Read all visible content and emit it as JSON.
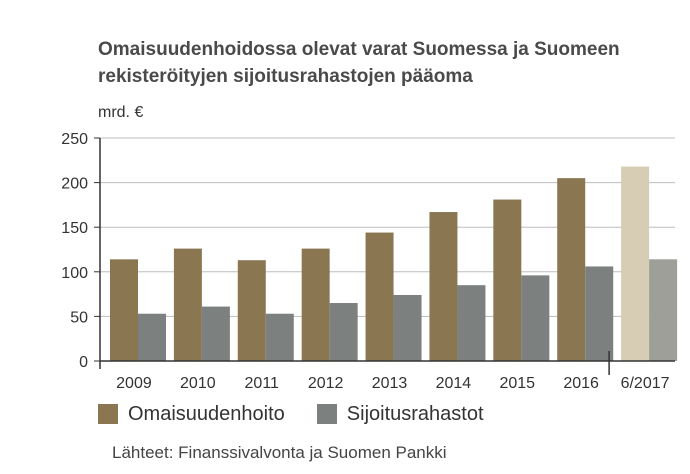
{
  "title_line1": "Omaisuudenhoidossa olevat varat Suomessa ja Suomeen",
  "title_line2": "rekisteröityjen sijoitusrahastojen pääoma",
  "source": "Lähteet: Finanssivalvonta ja Suomen Pankki",
  "chart_data": {
    "type": "bar",
    "title": "Omaisuudenhoidossa olevat varat Suomessa ja Suomeen rekisteröityjen sijoitusrahastojen pääoma",
    "ylabel": "mrd. €",
    "xlabel": "",
    "ylim": [
      0,
      250
    ],
    "yticks": [
      0,
      50,
      100,
      150,
      200,
      250
    ],
    "grid": true,
    "legend_position": "bottom",
    "categories": [
      "2009",
      "2010",
      "2011",
      "2012",
      "2013",
      "2014",
      "2015",
      "2016",
      "6/2017"
    ],
    "series": [
      {
        "name": "Omaisuudenhoito",
        "values": [
          114,
          126,
          113,
          126,
          144,
          167,
          181,
          205,
          218
        ],
        "color": "#8a7752",
        "highlight_color": "#d7ccb4"
      },
      {
        "name": "Sijoitusrahastot",
        "values": [
          53,
          61,
          53,
          65,
          74,
          85,
          96,
          106,
          114
        ],
        "color": "#7c8180",
        "highlight_color": "#9e9f99"
      }
    ],
    "highlight_last_category": true,
    "axis_break_before_last": true
  }
}
